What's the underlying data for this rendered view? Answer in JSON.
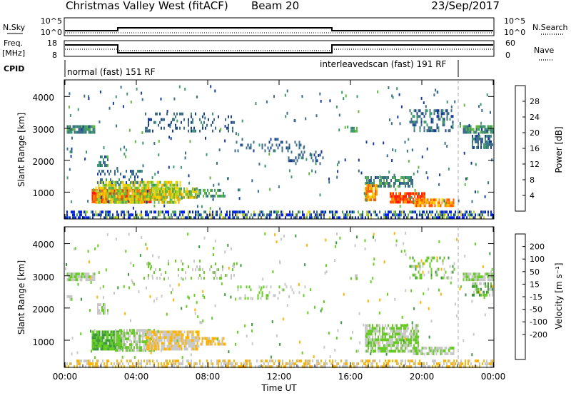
{
  "header": {
    "title": "Christmas Valley West (fitACF)",
    "beam": "Beam 20",
    "date": "23/Sep/2017"
  },
  "top_strip": {
    "nsky_label": "N.Sky",
    "nsky_ticks": [
      "10^5",
      "10^0"
    ],
    "nsearch_label": "N.Search",
    "nsearch_ticks": [
      "10^5",
      "10^0"
    ],
    "freq_label": "Freq.",
    "freq_unit": "[MHz]",
    "freq_ticks": [
      "18",
      "8"
    ],
    "nave_label": "Nave",
    "nave_ticks": [
      "60",
      "0"
    ],
    "cpid_label": "CPID",
    "cpid_segments": [
      "normal (fast) 151 RF",
      "interleavedscan (fast) 191 RF"
    ]
  },
  "x_axis": {
    "label": "Time UT",
    "ticks": [
      "00:00",
      "04:00",
      "08:00",
      "12:00",
      "16:00",
      "20:00",
      "00:00"
    ]
  },
  "colors": {
    "power": [
      "#0020ff",
      "#1a3c9a",
      "#3c6e8c",
      "#3f9a6e",
      "#62b840",
      "#b4d21e",
      "#ffd000",
      "#ff9a00",
      "#ff5a00",
      "#ff1e00"
    ],
    "velocity": [
      "#ff0000",
      "#ff5a00",
      "#ff8c00",
      "#ffb400",
      "#c8c8c8",
      "#66cc22",
      "#3c9a3c",
      "#1e6e78",
      "#1a3ca0",
      "#0a1aa0"
    ]
  },
  "chart_data": [
    {
      "type": "heatmap",
      "name": "power-panel",
      "ylabel": "Slant Range [km]",
      "ytick_labels": [
        "1000",
        "2000",
        "3000",
        "4000"
      ],
      "xlim": [
        0,
        24
      ],
      "ylim": [
        180,
        4500
      ],
      "x_ticks": [
        0,
        4,
        8,
        12,
        16,
        20,
        24
      ],
      "y_ticks": [
        1000,
        2000,
        3000,
        4000
      ],
      "colorbar": {
        "label": "Power [dB]",
        "range": [
          0,
          32
        ],
        "tick_values": [
          4,
          8,
          12,
          16,
          20,
          24,
          28
        ]
      },
      "regions": [
        {
          "t0": 0.1,
          "t1": 1.7,
          "r0": 2900,
          "r1": 3100,
          "v": 10,
          "vr": 4,
          "density": 0.85
        },
        {
          "t0": 0.1,
          "t1": 0.4,
          "r0": 2250,
          "r1": 2400,
          "v": 8,
          "vr": 3,
          "density": 0.6
        },
        {
          "t0": 1.8,
          "t1": 2.4,
          "r0": 1850,
          "r1": 2150,
          "v": 10,
          "vr": 4,
          "density": 0.6
        },
        {
          "t0": 1.5,
          "t1": 4.8,
          "r0": 720,
          "r1": 1100,
          "v": 28,
          "vr": 4,
          "density": 0.95
        },
        {
          "t0": 1.7,
          "t1": 6.5,
          "r0": 650,
          "r1": 1350,
          "v": 18,
          "vr": 6,
          "density": 0.75
        },
        {
          "t0": 4.8,
          "t1": 7.4,
          "r0": 800,
          "r1": 1150,
          "v": 18,
          "vr": 6,
          "density": 0.8
        },
        {
          "t0": 7.4,
          "t1": 9.0,
          "r0": 850,
          "r1": 1100,
          "v": 12,
          "vr": 4,
          "density": 0.6
        },
        {
          "t0": 1.8,
          "t1": 4.5,
          "r0": 1300,
          "r1": 1700,
          "v": 8,
          "vr": 3,
          "density": 0.3
        },
        {
          "t0": 4.4,
          "t1": 9.5,
          "r0": 2950,
          "r1": 3500,
          "v": 7,
          "vr": 3,
          "density": 0.2
        },
        {
          "t0": 9.5,
          "t1": 13.5,
          "r0": 2300,
          "r1": 2700,
          "v": 7,
          "vr": 3,
          "density": 0.22
        },
        {
          "t0": 12.5,
          "t1": 14.5,
          "r0": 1900,
          "r1": 2300,
          "v": 7,
          "vr": 3,
          "density": 0.2
        },
        {
          "t0": 16.8,
          "t1": 19.5,
          "r0": 1150,
          "r1": 1500,
          "v": 10,
          "vr": 4,
          "density": 0.6
        },
        {
          "t0": 16.8,
          "t1": 17.5,
          "r0": 800,
          "r1": 1250,
          "v": 24,
          "vr": 5,
          "density": 0.8
        },
        {
          "t0": 18.2,
          "t1": 20.2,
          "r0": 700,
          "r1": 1000,
          "v": 28,
          "vr": 4,
          "density": 0.9
        },
        {
          "t0": 19.5,
          "t1": 21.8,
          "r0": 550,
          "r1": 800,
          "v": 24,
          "vr": 5,
          "density": 0.8
        },
        {
          "t0": 16.0,
          "t1": 16.4,
          "r0": 2900,
          "r1": 3050,
          "v": 12,
          "vr": 3,
          "density": 0.8
        },
        {
          "t0": 19.3,
          "t1": 21.8,
          "r0": 2900,
          "r1": 3600,
          "v": 8,
          "vr": 4,
          "density": 0.35
        },
        {
          "t0": 22.3,
          "t1": 24.0,
          "r0": 2850,
          "r1": 3100,
          "v": 12,
          "vr": 4,
          "density": 0.85
        },
        {
          "t0": 22.8,
          "t1": 24.0,
          "r0": 2400,
          "r1": 2800,
          "v": 8,
          "vr": 3,
          "density": 0.7
        },
        {
          "t0": 0.0,
          "t1": 24.0,
          "r0": 180,
          "r1": 420,
          "v": 6,
          "vr": 14,
          "density": 0.55
        }
      ]
    },
    {
      "type": "heatmap",
      "name": "velocity-panel",
      "ylabel": "Slant Range [km]",
      "ytick_labels": [
        "1000",
        "2000",
        "3000",
        "4000"
      ],
      "xlim": [
        0,
        24
      ],
      "ylim": [
        180,
        4500
      ],
      "x_ticks": [
        0,
        4,
        8,
        12,
        16,
        20,
        24
      ],
      "y_ticks": [
        1000,
        2000,
        3000,
        4000
      ],
      "colorbar": {
        "label": "Velocity [m s⁻¹]",
        "tick_labels": [
          "200",
          "100",
          "50",
          "15",
          "-15",
          "-50",
          "-100",
          "-200"
        ],
        "bin_values": [
          -250,
          -150,
          -75,
          -30,
          0,
          30,
          75,
          150,
          250,
          300
        ]
      },
      "regions": [
        {
          "t0": 0.1,
          "t1": 1.7,
          "r0": 2900,
          "r1": 3100,
          "v": 0,
          "vr": 10,
          "density": 0.85
        },
        {
          "t0": 0.1,
          "t1": 0.4,
          "r0": 2250,
          "r1": 2400,
          "v": 0,
          "vr": 10,
          "density": 0.6
        },
        {
          "t0": 1.8,
          "t1": 2.4,
          "r0": 1850,
          "r1": 2150,
          "v": 0,
          "vr": 30,
          "density": 0.5
        },
        {
          "t0": 1.5,
          "t1": 3.2,
          "r0": 700,
          "r1": 1300,
          "v": 30,
          "vr": 10,
          "density": 0.9
        },
        {
          "t0": 2.8,
          "t1": 5.0,
          "r0": 650,
          "r1": 1350,
          "v": 0,
          "vr": 10,
          "density": 0.7
        },
        {
          "t0": 4.5,
          "t1": 7.5,
          "r0": 750,
          "r1": 1300,
          "v": -30,
          "vr": 10,
          "density": 0.85
        },
        {
          "t0": 7.5,
          "t1": 9.0,
          "r0": 850,
          "r1": 1100,
          "v": -30,
          "vr": 10,
          "density": 0.6
        },
        {
          "t0": 4.4,
          "t1": 9.5,
          "r0": 2950,
          "r1": 3500,
          "v": 0,
          "vr": 15,
          "density": 0.15
        },
        {
          "t0": 9.5,
          "t1": 13.5,
          "r0": 2300,
          "r1": 2700,
          "v": 0,
          "vr": 20,
          "density": 0.15
        },
        {
          "t0": 16.8,
          "t1": 19.8,
          "r0": 700,
          "r1": 1500,
          "v": 0,
          "vr": 10,
          "density": 0.75
        },
        {
          "t0": 19.5,
          "t1": 21.8,
          "r0": 550,
          "r1": 800,
          "v": 0,
          "vr": 10,
          "density": 0.75
        },
        {
          "t0": 16.0,
          "t1": 16.4,
          "r0": 2900,
          "r1": 3050,
          "v": 0,
          "vr": 10,
          "density": 0.8
        },
        {
          "t0": 19.3,
          "t1": 21.8,
          "r0": 2900,
          "r1": 3600,
          "v": 0,
          "vr": 40,
          "density": 0.3
        },
        {
          "t0": 22.3,
          "t1": 24.0,
          "r0": 2850,
          "r1": 3100,
          "v": 0,
          "vr": 10,
          "density": 0.85
        },
        {
          "t0": 22.8,
          "t1": 24.0,
          "r0": 2400,
          "r1": 2800,
          "v": 20,
          "vr": 60,
          "density": 0.5
        },
        {
          "t0": 0.0,
          "t1": 24.0,
          "r0": 180,
          "r1": 400,
          "v": -30,
          "vr": 25,
          "density": 0.5
        }
      ]
    }
  ]
}
